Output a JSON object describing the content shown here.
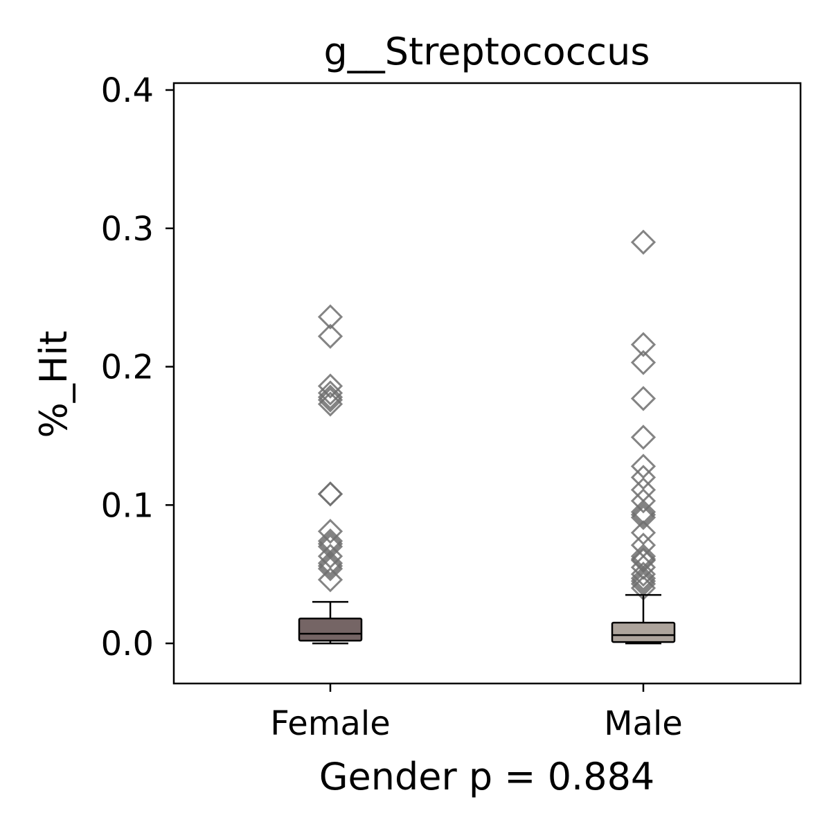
{
  "chart_data": {
    "type": "box",
    "title": "g__Streptococcus",
    "xlabel": "Gender p = 0.884",
    "ylabel": "%_Hit",
    "ylim": [
      -0.029,
      0.405
    ],
    "yticks": [
      "0.0",
      "0.1",
      "0.2",
      "0.3",
      "0.4"
    ],
    "ytick_values": [
      0.0,
      0.1,
      0.2,
      0.3,
      0.4
    ],
    "grid": false,
    "colors": {
      "female_box": "#756565",
      "male_box": "#ada49c",
      "outlier": "#6e6e6e"
    },
    "categories": [
      "Female",
      "Male"
    ],
    "series": [
      {
        "category": "Female",
        "whisker_low": 0.0,
        "q1": 0.002,
        "median": 0.007,
        "q3": 0.018,
        "whisker_high": 0.03,
        "outliers": [
          0.236,
          0.222,
          0.186,
          0.181,
          0.178,
          0.176,
          0.173,
          0.108,
          0.108,
          0.081,
          0.074,
          0.072,
          0.07,
          0.063,
          0.058,
          0.056,
          0.054,
          0.046
        ]
      },
      {
        "category": "Male",
        "whisker_low": 0.0,
        "q1": 0.001,
        "median": 0.006,
        "q3": 0.015,
        "whisker_high": 0.035,
        "outliers": [
          0.29,
          0.216,
          0.203,
          0.177,
          0.149,
          0.128,
          0.12,
          0.111,
          0.103,
          0.095,
          0.093,
          0.091,
          0.08,
          0.071,
          0.063,
          0.061,
          0.06,
          0.055,
          0.05,
          0.047,
          0.045,
          0.043,
          0.04
        ]
      }
    ]
  }
}
